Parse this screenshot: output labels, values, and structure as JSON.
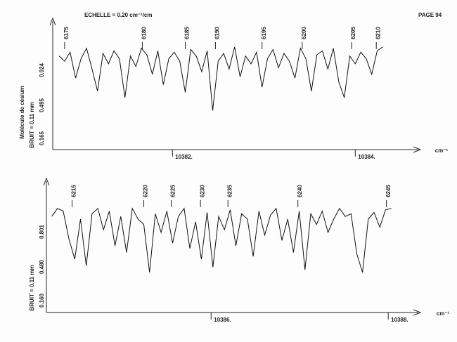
{
  "header": {
    "scale": "ECHELLE = 0.20 cm⁻¹/cm",
    "page": "PAGE 94"
  },
  "chart_data": [
    {
      "type": "line",
      "color": "#111111",
      "x_unit": "cm⁻¹",
      "side_labels": [
        "Molécule de césium",
        "BRUIT = 0.11 mm",
        "0.024",
        "0.495",
        "0.165"
      ],
      "xlim": [
        10380.69,
        10384.69
      ],
      "ylim": [
        0,
        100
      ],
      "xticks": [
        {
          "value": 10382,
          "label": "10382."
        },
        {
          "value": 10384,
          "label": "10384."
        }
      ],
      "annotations": [
        {
          "label": "6175",
          "x": 10380.82
        },
        {
          "label": "6180",
          "x": 10381.67
        },
        {
          "label": "6185",
          "x": 10382.14
        },
        {
          "label": "6190",
          "x": 10382.47
        },
        {
          "label": "6195",
          "x": 10382.98
        },
        {
          "label": "6200",
          "x": 10383.42
        },
        {
          "label": "6205",
          "x": 10383.96
        },
        {
          "label": "6210",
          "x": 10384.23
        }
      ],
      "x": [
        10380.76,
        10380.82,
        10380.88,
        10380.94,
        10381.0,
        10381.06,
        10381.12,
        10381.18,
        10381.24,
        10381.3,
        10381.36,
        10381.42,
        10381.48,
        10381.54,
        10381.6,
        10381.66,
        10381.72,
        10381.78,
        10381.84,
        10381.9,
        10381.96,
        10382.02,
        10382.08,
        10382.14,
        10382.2,
        10382.26,
        10382.32,
        10382.38,
        10382.44,
        10382.5,
        10382.56,
        10382.62,
        10382.68,
        10382.74,
        10382.8,
        10382.86,
        10382.92,
        10382.98,
        10383.04,
        10383.1,
        10383.16,
        10383.22,
        10383.28,
        10383.34,
        10383.4,
        10383.46,
        10383.52,
        10383.58,
        10383.64,
        10383.7,
        10383.76,
        10383.82,
        10383.88,
        10383.94,
        10384.0,
        10384.06,
        10384.12,
        10384.18,
        10384.24,
        10384.3
      ],
      "values": [
        72,
        68,
        75,
        55,
        70,
        78,
        62,
        45,
        74,
        66,
        76,
        70,
        40,
        72,
        64,
        78,
        73,
        58,
        76,
        50,
        70,
        75,
        68,
        44,
        77,
        72,
        60,
        76,
        30,
        68,
        74,
        62,
        79,
        56,
        72,
        66,
        75,
        48,
        70,
        77,
        63,
        74,
        68,
        55,
        78,
        70,
        45,
        73,
        76,
        62,
        78,
        52,
        40,
        72,
        66,
        75,
        70,
        58,
        76,
        79
      ]
    },
    {
      "type": "line",
      "color": "#111111",
      "x_unit": "cm⁻¹",
      "side_labels": [
        "BRUIT = 0.11 mm",
        "0.801",
        "0.480",
        "0.160"
      ],
      "xlim": [
        10384.14,
        10388.34
      ],
      "ylim": [
        0,
        100
      ],
      "xticks": [
        {
          "value": 10386,
          "label": "10386."
        },
        {
          "value": 10388,
          "label": "10388."
        }
      ],
      "annotations": [
        {
          "label": "6215",
          "x": 10384.43
        },
        {
          "label": "6220",
          "x": 10385.24
        },
        {
          "label": "6225",
          "x": 10385.55
        },
        {
          "label": "6230",
          "x": 10385.88
        },
        {
          "label": "6235",
          "x": 10386.19
        },
        {
          "label": "6240",
          "x": 10386.98
        },
        {
          "label": "6245",
          "x": 10387.98
        }
      ],
      "x": [
        10384.2,
        10384.265,
        10384.33,
        10384.395,
        10384.46,
        10384.525,
        10384.59,
        10384.655,
        10384.72,
        10384.785,
        10384.85,
        10384.915,
        10384.98,
        10385.045,
        10385.11,
        10385.175,
        10385.24,
        10385.305,
        10385.37,
        10385.435,
        10385.5,
        10385.565,
        10385.63,
        10385.695,
        10385.76,
        10385.825,
        10385.89,
        10385.955,
        10386.02,
        10386.085,
        10386.15,
        10386.215,
        10386.28,
        10386.345,
        10386.41,
        10386.475,
        10386.54,
        10386.605,
        10386.67,
        10386.735,
        10386.8,
        10386.865,
        10386.93,
        10386.995,
        10387.06,
        10387.125,
        10387.19,
        10387.255,
        10387.32,
        10387.385,
        10387.45,
        10387.515,
        10387.58,
        10387.645,
        10387.71,
        10387.775,
        10387.84,
        10387.905,
        10387.97,
        10388.035
      ],
      "values": [
        72,
        78,
        76,
        55,
        40,
        70,
        35,
        74,
        78,
        62,
        76,
        50,
        72,
        45,
        78,
        70,
        66,
        30,
        74,
        60,
        76,
        52,
        72,
        78,
        48,
        68,
        40,
        75,
        34,
        72,
        62,
        77,
        50,
        74,
        70,
        42,
        76,
        58,
        73,
        78,
        54,
        70,
        45,
        76,
        32,
        74,
        66,
        76,
        60,
        70,
        78,
        72,
        74,
        44,
        30,
        70,
        75,
        64,
        77,
        78
      ]
    }
  ]
}
